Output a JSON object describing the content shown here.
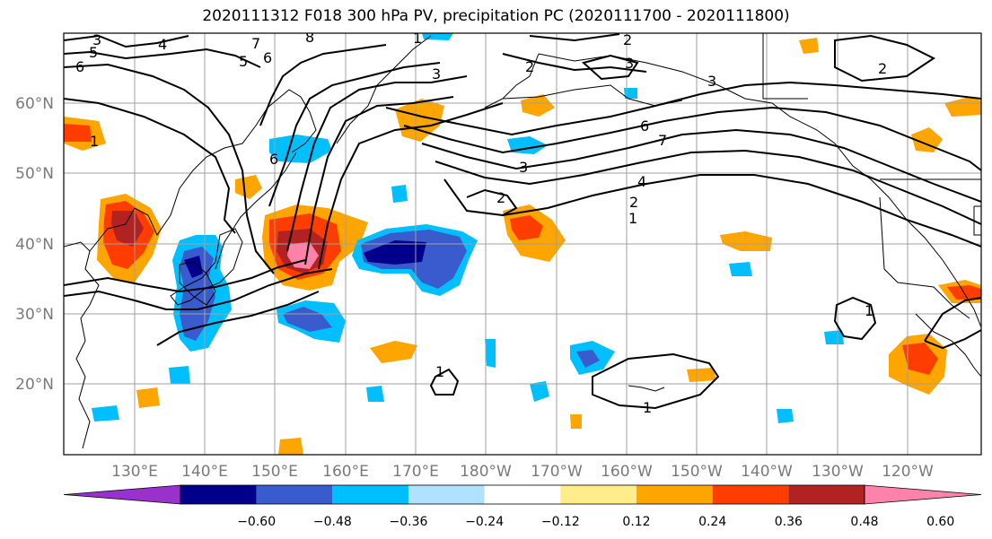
{
  "title": "2020111312 F018 300 hPa PV, precipitation PC (2020111700 - 2020111800)",
  "lat_labels": [
    "60°N",
    "50°N",
    "40°N",
    "30°N",
    "20°N"
  ],
  "lon_labels": [
    "130°E",
    "140°E",
    "150°E",
    "160°E",
    "170°E",
    "180°W",
    "170°W",
    "160°W",
    "150°W",
    "140°W",
    "130°W",
    "120°W"
  ],
  "colorbar": {
    "ticks": [
      "−0.60",
      "−0.48",
      "−0.36",
      "−0.24",
      "−0.12",
      "0.12",
      "0.24",
      "0.36",
      "0.48",
      "0.60"
    ],
    "colors": [
      "#9932cc",
      "#00008b",
      "#3a5bcd",
      "#00bfff",
      "#b0e2ff",
      "#ffffff",
      "#ffec8b",
      "#ffa500",
      "#ff3d00",
      "#b22222",
      "#ff82ab"
    ]
  },
  "contour_labels": [
    "3",
    "5",
    "6",
    "4",
    "7",
    "8",
    "6",
    "5",
    "1",
    "2",
    "3",
    "2",
    "3",
    "6",
    "7",
    "4",
    "2",
    "1",
    "2",
    "1",
    "1",
    "1",
    "2",
    "3",
    "1",
    "3",
    "6"
  ]
}
